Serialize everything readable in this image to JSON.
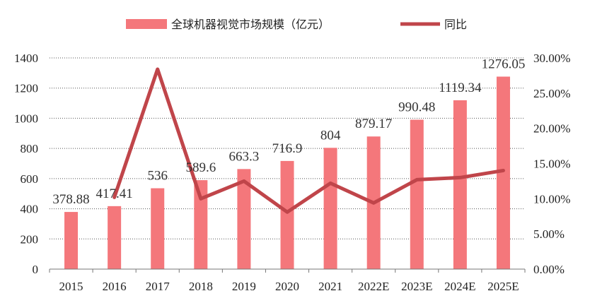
{
  "chart_data": {
    "type": "bar",
    "categories": [
      "2015",
      "2016",
      "2017",
      "2018",
      "2019",
      "2020",
      "2021",
      "2022E",
      "2023E",
      "2024E",
      "2025E"
    ],
    "series": [
      {
        "name": "全球机器视觉市场规模（亿元）",
        "type": "bar",
        "axis": "left",
        "color": "#f4777b",
        "values": [
          378.88,
          417.41,
          536,
          589.6,
          663.3,
          716.9,
          804,
          879.17,
          990.48,
          1119.34,
          1276.05
        ],
        "labels": [
          "378.88",
          "417.41",
          "536",
          "589.6",
          "663.3",
          "716.9",
          "804",
          "879.17",
          "990.48",
          "1119.34",
          "1276.05"
        ]
      },
      {
        "name": "同比",
        "type": "line",
        "axis": "right",
        "color": "#c0454a",
        "values": [
          null,
          10.2,
          28.4,
          10.0,
          12.5,
          8.1,
          12.2,
          9.4,
          12.7,
          13.0,
          14.0
        ]
      }
    ],
    "left_axis": {
      "ylim": [
        0,
        1400
      ],
      "ticks": [
        "0",
        "200",
        "400",
        "600",
        "800",
        "1000",
        "1200",
        "1400"
      ]
    },
    "right_axis": {
      "ylim": [
        0,
        30
      ],
      "ticks": [
        "0.00%",
        "5.00%",
        "10.00%",
        "15.00%",
        "20.00%",
        "25.00%",
        "30.00%"
      ]
    },
    "grid": "horizontal dotted",
    "legend_position": "top-center"
  }
}
